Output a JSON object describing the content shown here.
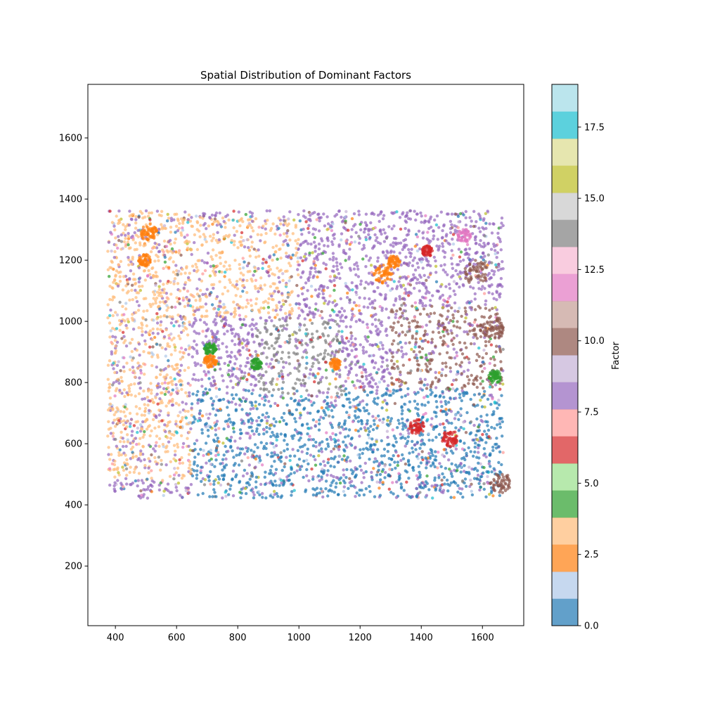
{
  "chart_data": {
    "type": "scatter",
    "title": "Spatial Distribution of Dominant Factors",
    "xlabel": "",
    "ylabel": "",
    "xlim": [
      310,
      1735
    ],
    "ylim": [
      5,
      1775
    ],
    "xticks": [
      400,
      600,
      800,
      1000,
      1200,
      1400,
      1600
    ],
    "yticks": [
      200,
      400,
      600,
      800,
      1000,
      1200,
      1400,
      1600
    ],
    "grid": false,
    "point_extent": {
      "x": [
        375,
        1668
      ],
      "y": [
        422,
        1362
      ]
    },
    "colorbar": {
      "label": "Factor",
      "range": [
        0,
        19
      ],
      "ticks": [
        0.0,
        2.5,
        5.0,
        7.5,
        10.0,
        12.5,
        15.0,
        17.5
      ],
      "tick_labels": [
        "0.0",
        "2.5",
        "5.0",
        "7.5",
        "10.0",
        "12.5",
        "15.0",
        "17.5"
      ],
      "colormap": "tab20",
      "colors": [
        "#1f77b4",
        "#aec7e8",
        "#ff7f0e",
        "#ffbb78",
        "#2ca02c",
        "#98df8a",
        "#d62728",
        "#ff9896",
        "#9467bd",
        "#c5b0d5",
        "#8c564b",
        "#c49c94",
        "#e377c2",
        "#f7b6d2",
        "#7f7f7f",
        "#c7c7c7",
        "#bcbd22",
        "#dbdb8d",
        "#17becf",
        "#9edae5"
      ]
    },
    "regions": [
      {
        "factor": 3,
        "x": [
          375,
          650
        ],
        "y": [
          480,
          1360
        ],
        "description_en": ""
      },
      {
        "factor": 3,
        "x": [
          560,
          1000
        ],
        "y": [
          1010,
          1340
        ]
      },
      {
        "factor": 14,
        "x": [
          860,
          1140
        ],
        "y": [
          760,
          1000
        ]
      },
      {
        "factor": 0,
        "x": [
          650,
          1668
        ],
        "y": [
          422,
          780
        ]
      },
      {
        "factor": 10,
        "x": [
          1300,
          1668
        ],
        "y": [
          600,
          1050
        ]
      },
      {
        "factor": 8,
        "x": [
          375,
          1668
        ],
        "y": [
          422,
          1362
        ]
      }
    ],
    "hotspots": [
      {
        "factor": 6,
        "x": 1385,
        "y": 655,
        "r": 25
      },
      {
        "factor": 6,
        "x": 1495,
        "y": 618,
        "r": 28
      },
      {
        "factor": 2,
        "x": 1275,
        "y": 1155,
        "r": 30
      },
      {
        "factor": 2,
        "x": 1310,
        "y": 1195,
        "r": 20
      },
      {
        "factor": 2,
        "x": 510,
        "y": 1290,
        "r": 28
      },
      {
        "factor": 2,
        "x": 495,
        "y": 1200,
        "r": 20
      },
      {
        "factor": 2,
        "x": 710,
        "y": 870,
        "r": 22
      },
      {
        "factor": 2,
        "x": 1120,
        "y": 860,
        "r": 18
      },
      {
        "factor": 4,
        "x": 710,
        "y": 910,
        "r": 20
      },
      {
        "factor": 4,
        "x": 860,
        "y": 860,
        "r": 18
      },
      {
        "factor": 4,
        "x": 1640,
        "y": 820,
        "r": 22
      },
      {
        "factor": 10,
        "x": 1580,
        "y": 1160,
        "r": 40
      },
      {
        "factor": 10,
        "x": 1630,
        "y": 980,
        "r": 40
      },
      {
        "factor": 10,
        "x": 1660,
        "y": 470,
        "r": 35
      },
      {
        "factor": 12,
        "x": 1540,
        "y": 1280,
        "r": 22
      },
      {
        "factor": 6,
        "x": 1420,
        "y": 1230,
        "r": 18
      }
    ]
  }
}
